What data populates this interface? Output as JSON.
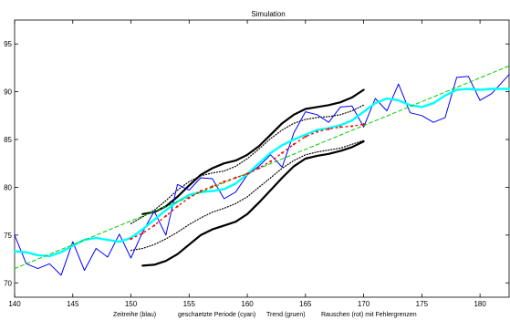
{
  "chart_data": {
    "type": "line",
    "title": "Simulation",
    "xlabels": [
      "Zeitreihe (blau)",
      "geschaetzte Periode (cyan)",
      "Trend (gruen)",
      "Rauschen (rot) mit Fehlergrenzen"
    ],
    "xlim": [
      140,
      182.5
    ],
    "ylim": [
      68.5,
      97.5
    ],
    "x_ticks": [
      140,
      145,
      150,
      155,
      160,
      165,
      170,
      175,
      180
    ],
    "y_ticks": [
      70,
      75,
      80,
      85,
      90,
      95
    ],
    "grid": false,
    "colors": {
      "series": "#0000ff",
      "period": "#00ffff",
      "trend": "#00cc00",
      "noise": "#ff0000",
      "bounds": "#000000",
      "axes": "#000000"
    },
    "series": [
      {
        "key": "zeitreihe",
        "x": [
          140,
          141,
          142,
          143,
          144,
          145,
          146,
          147,
          148,
          149,
          150,
          151,
          152,
          153,
          154,
          155,
          156,
          157,
          158,
          159,
          160,
          161,
          162,
          163,
          164,
          165,
          166,
          167,
          168,
          169,
          170,
          171,
          172,
          173,
          174,
          175,
          176,
          177,
          178,
          179,
          180,
          181,
          182.5
        ],
        "values": [
          75.0,
          72.0,
          71.5,
          72.0,
          70.8,
          74.3,
          71.3,
          73.6,
          72.7,
          75.1,
          72.6,
          75.3,
          77.5,
          75.0,
          80.3,
          79.7,
          81.0,
          80.9,
          78.8,
          79.5,
          81.3,
          82.2,
          83.4,
          82.1,
          85.7,
          87.9,
          87.6,
          86.8,
          88.4,
          88.5,
          86.3,
          89.3,
          88.0,
          90.8,
          87.8,
          87.5,
          86.8,
          87.3,
          91.5,
          91.6,
          89.1,
          89.8,
          91.8
        ]
      },
      {
        "key": "periode",
        "x": [
          140,
          141,
          142,
          143,
          144,
          145,
          146,
          147,
          148,
          149,
          150,
          151,
          152,
          153,
          154,
          155,
          156,
          157,
          158,
          159,
          160,
          161,
          162,
          163,
          164,
          165,
          166,
          167,
          168,
          169,
          170,
          171,
          172,
          173,
          174,
          175,
          176,
          177,
          178,
          179,
          180,
          181,
          182.5
        ],
        "values": [
          73.3,
          73.2,
          72.9,
          72.8,
          73.2,
          73.9,
          74.5,
          74.7,
          74.5,
          74.3,
          74.7,
          75.6,
          76.6,
          77.6,
          78.5,
          79.2,
          79.5,
          79.6,
          79.8,
          80.4,
          81.4,
          82.5,
          83.6,
          84.4,
          85.0,
          85.5,
          86.0,
          86.2,
          86.5,
          87.0,
          87.9,
          88.8,
          89.3,
          89.1,
          88.6,
          88.4,
          88.8,
          89.6,
          90.2,
          90.3,
          90.2,
          90.3,
          90.3
        ]
      },
      {
        "key": "trend",
        "x": [
          140,
          182.5
        ],
        "values": [
          71.5,
          92.7
        ]
      },
      {
        "key": "rauschen",
        "x": [
          150,
          151,
          152,
          153,
          154,
          155,
          156,
          157,
          158,
          159,
          160,
          161,
          162,
          163,
          164,
          165,
          166,
          167,
          168,
          169,
          170
        ],
        "values": [
          74.6,
          75.2,
          76.0,
          77.0,
          78.0,
          78.9,
          79.6,
          80.1,
          80.6,
          81.0,
          81.4,
          82.0,
          82.7,
          83.6,
          84.5,
          85.3,
          85.8,
          86.1,
          86.3,
          86.4,
          86.6
        ]
      },
      {
        "key": "grenze-oben-1",
        "x": [
          150,
          151,
          152,
          153,
          154,
          155,
          156,
          157,
          158,
          159,
          160,
          161,
          162,
          163,
          164,
          165,
          166,
          167,
          168,
          169,
          170
        ],
        "values": [
          76.2,
          76.9,
          77.6,
          78.6,
          79.7,
          80.6,
          81.2,
          81.5,
          81.7,
          82.2,
          83.0,
          84.0,
          85.1,
          86.0,
          86.7,
          87.1,
          87.3,
          87.4,
          87.6,
          88.0,
          88.6
        ]
      },
      {
        "key": "grenze-unten-1",
        "x": [
          150,
          151,
          152,
          153,
          154,
          155,
          156,
          157,
          158,
          159,
          160,
          161,
          162,
          163,
          164,
          165,
          166,
          167,
          168,
          169,
          170
        ],
        "values": [
          73.4,
          73.6,
          74.0,
          74.6,
          75.3,
          76.1,
          76.8,
          77.4,
          77.8,
          78.3,
          79.0,
          80.0,
          81.0,
          82.0,
          82.8,
          83.4,
          83.7,
          83.9,
          84.1,
          84.5,
          84.9
        ]
      },
      {
        "key": "grenze-oben-2",
        "x": [
          151,
          152,
          153,
          154,
          155,
          156,
          157,
          158,
          159,
          160,
          161,
          162,
          163,
          164,
          165,
          166,
          167,
          168,
          169,
          170
        ],
        "values": [
          77.2,
          77.4,
          78.0,
          79.0,
          80.2,
          81.3,
          82.0,
          82.5,
          82.8,
          83.4,
          84.3,
          85.5,
          86.7,
          87.6,
          88.2,
          88.4,
          88.6,
          88.9,
          89.4,
          90.2
        ]
      },
      {
        "key": "grenze-unten-2",
        "x": [
          151,
          152,
          153,
          154,
          155,
          156,
          157,
          158,
          159,
          160,
          161,
          162,
          163,
          164,
          165,
          166,
          167,
          168,
          169,
          170
        ],
        "values": [
          71.8,
          71.9,
          72.3,
          73.0,
          74.0,
          75.0,
          75.6,
          76.0,
          76.4,
          77.2,
          78.4,
          79.7,
          81.0,
          82.2,
          83.0,
          83.3,
          83.5,
          83.8,
          84.2,
          84.8
        ]
      }
    ]
  }
}
